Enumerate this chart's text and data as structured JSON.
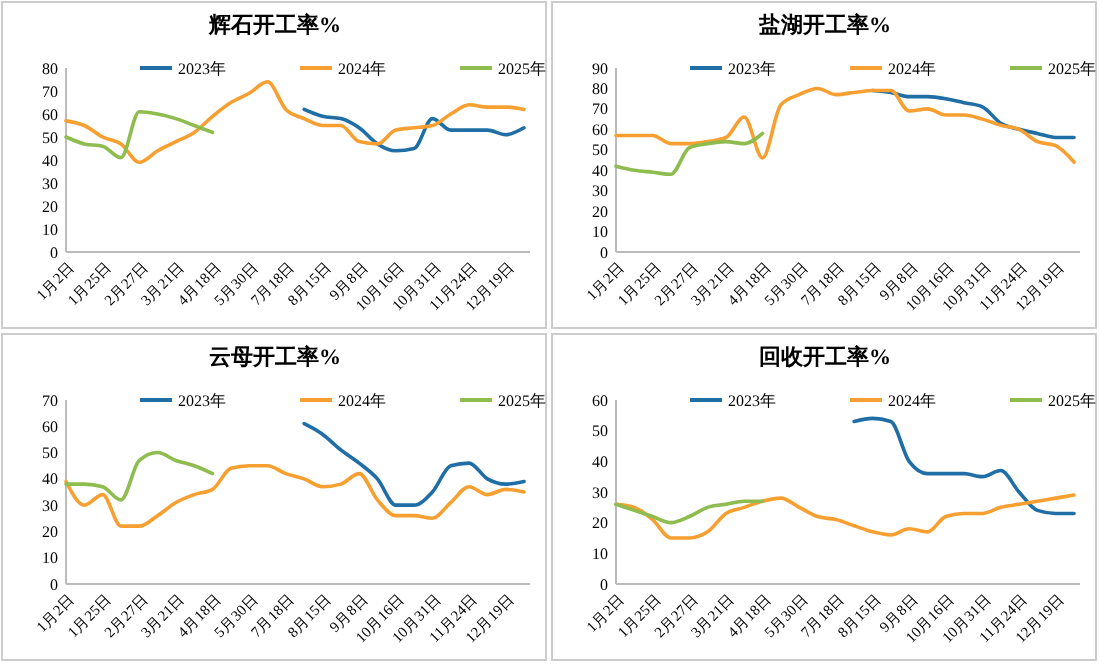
{
  "chart_data": [
    {
      "type": "line",
      "title": "辉石开工率%",
      "categories": [
        "1月2日",
        null,
        "1月25日",
        null,
        "2月27日",
        null,
        "3月21日",
        null,
        "4月18日",
        null,
        "5月30日",
        null,
        "7月18日",
        null,
        "8月15日",
        null,
        "9月8日",
        null,
        "10月16日",
        null,
        "10月31日",
        null,
        "11月24日",
        null,
        "12月19日",
        null
      ],
      "ylim": [
        0,
        80
      ],
      "yticks": [
        0,
        10,
        20,
        30,
        40,
        50,
        60,
        70,
        80
      ],
      "legend": "top",
      "grid": false,
      "series": [
        {
          "name": "2023年",
          "color": "#1f6ea6",
          "values": [
            null,
            null,
            null,
            null,
            null,
            null,
            null,
            null,
            null,
            null,
            null,
            null,
            null,
            62,
            59,
            58,
            54,
            47,
            44,
            45,
            58,
            53,
            53,
            53,
            51,
            54
          ]
        },
        {
          "name": "2024年",
          "color": "#f7a031",
          "values": [
            57,
            55,
            50,
            47,
            39,
            44,
            48,
            52,
            59,
            65,
            69,
            74,
            62,
            58,
            55,
            55,
            48,
            47,
            53,
            54,
            55,
            60,
            64,
            63,
            63,
            62
          ]
        },
        {
          "name": "2025年",
          "color": "#8ebc4f",
          "values": [
            50,
            47,
            46,
            41,
            61,
            60,
            58,
            55,
            52,
            null,
            null,
            null,
            null,
            null,
            null,
            null,
            null,
            null,
            null,
            null,
            null,
            null,
            null,
            null,
            null,
            null
          ]
        }
      ]
    },
    {
      "type": "line",
      "title": "盐湖开工率%",
      "categories": [
        "1月2日",
        null,
        "1月25日",
        null,
        "2月27日",
        null,
        "3月21日",
        null,
        "4月18日",
        null,
        "5月30日",
        null,
        "7月18日",
        null,
        "8月15日",
        null,
        "9月8日",
        null,
        "10月16日",
        null,
        "10月31日",
        null,
        "11月24日",
        null,
        "12月19日",
        null
      ],
      "ylim": [
        0,
        90
      ],
      "yticks": [
        0,
        10,
        20,
        30,
        40,
        50,
        60,
        70,
        80,
        90
      ],
      "legend": "top",
      "grid": false,
      "series": [
        {
          "name": "2023年",
          "color": "#1f6ea6",
          "values": [
            null,
            null,
            null,
            null,
            null,
            null,
            null,
            null,
            null,
            null,
            null,
            null,
            null,
            null,
            79,
            78,
            76,
            76,
            75,
            73,
            71,
            63,
            60,
            58,
            56,
            56
          ]
        },
        {
          "name": "2024年",
          "color": "#f7a031",
          "values": [
            57,
            57,
            57,
            53,
            53,
            54,
            56,
            66,
            46,
            72,
            77,
            80,
            77,
            78,
            79,
            79,
            69,
            70,
            67,
            67,
            65,
            62,
            60,
            54,
            52,
            44
          ]
        },
        {
          "name": "2025年",
          "color": "#8ebc4f",
          "values": [
            42,
            40,
            39,
            38,
            51,
            53,
            54,
            53,
            58,
            null,
            null,
            null,
            null,
            null,
            null,
            null,
            null,
            null,
            null,
            null,
            null,
            null,
            null,
            null,
            null,
            null
          ]
        }
      ]
    },
    {
      "type": "line",
      "title": "云母开工率%",
      "categories": [
        "1月2日",
        null,
        "1月25日",
        null,
        "2月27日",
        null,
        "3月21日",
        null,
        "4月18日",
        null,
        "5月30日",
        null,
        "7月18日",
        null,
        "8月15日",
        null,
        "9月8日",
        null,
        "10月16日",
        null,
        "10月31日",
        null,
        "11月24日",
        null,
        "12月19日",
        null
      ],
      "ylim": [
        0,
        70
      ],
      "yticks": [
        0,
        10,
        20,
        30,
        40,
        50,
        60,
        70
      ],
      "legend": "top",
      "grid": false,
      "series": [
        {
          "name": "2023年",
          "color": "#1f6ea6",
          "values": [
            null,
            null,
            null,
            null,
            null,
            null,
            null,
            null,
            null,
            null,
            null,
            null,
            null,
            61,
            57,
            51,
            46,
            40,
            30,
            30,
            35,
            45,
            46,
            40,
            38,
            39
          ]
        },
        {
          "name": "2024年",
          "color": "#f7a031",
          "values": [
            39,
            30,
            34,
            22,
            22,
            26,
            31,
            34,
            36,
            44,
            45,
            45,
            42,
            40,
            37,
            38,
            42,
            32,
            26,
            26,
            25,
            31,
            37,
            34,
            36,
            35
          ]
        },
        {
          "name": "2025年",
          "color": "#8ebc4f",
          "values": [
            38,
            38,
            37,
            32,
            47,
            50,
            47,
            45,
            42,
            null,
            null,
            null,
            null,
            null,
            null,
            null,
            null,
            null,
            null,
            null,
            null,
            null,
            null,
            null,
            null,
            null
          ]
        }
      ]
    },
    {
      "type": "line",
      "title": "回收开工率%",
      "categories": [
        "1月2日",
        null,
        "1月25日",
        null,
        "2月27日",
        null,
        "3月21日",
        null,
        "4月18日",
        null,
        "5月30日",
        null,
        "7月18日",
        null,
        "8月15日",
        null,
        "9月8日",
        null,
        "10月16日",
        null,
        "10月31日",
        null,
        "11月24日",
        null,
        "12月19日",
        null
      ],
      "ylim": [
        0,
        60
      ],
      "yticks": [
        0,
        10,
        20,
        30,
        40,
        50,
        60
      ],
      "legend": "top",
      "grid": false,
      "series": [
        {
          "name": "2023年",
          "color": "#1f6ea6",
          "values": [
            null,
            null,
            null,
            null,
            null,
            null,
            null,
            null,
            null,
            null,
            null,
            null,
            null,
            53,
            54,
            53,
            40,
            36,
            36,
            36,
            35,
            37,
            30,
            24,
            23,
            23
          ]
        },
        {
          "name": "2024年",
          "color": "#f7a031",
          "values": [
            26,
            25,
            21,
            15,
            15,
            17,
            23,
            25,
            27,
            28,
            25,
            22,
            21,
            19,
            17,
            16,
            18,
            17,
            22,
            23,
            23,
            25,
            26,
            27,
            28,
            29
          ]
        },
        {
          "name": "2025年",
          "color": "#8ebc4f",
          "values": [
            26,
            24,
            22,
            20,
            22,
            25,
            26,
            27,
            27,
            null,
            null,
            null,
            null,
            null,
            null,
            null,
            null,
            null,
            null,
            null,
            null,
            null,
            null,
            null,
            null,
            null
          ]
        }
      ]
    }
  ]
}
